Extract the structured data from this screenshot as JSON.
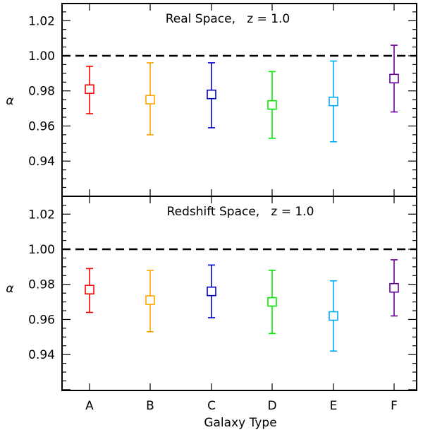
{
  "chart_data": [
    {
      "type": "scatter",
      "title": "Real Space,   z = 1.0",
      "ylabel": "α",
      "xlabel": "",
      "ylim": [
        0.92,
        1.03
      ],
      "yticks": [
        "0.94",
        "0.96",
        "0.98",
        "1.00",
        "1.02"
      ],
      "reference_line": {
        "y": 1.0,
        "style": "dashed"
      },
      "categories": [
        "A",
        "B",
        "C",
        "D",
        "E",
        "F"
      ],
      "points": [
        {
          "category": "A",
          "value": 0.981,
          "err_low": 0.967,
          "err_high": 0.994,
          "color": "#ff0000"
        },
        {
          "category": "B",
          "value": 0.975,
          "err_low": 0.955,
          "err_high": 0.996,
          "color": "#ffa500"
        },
        {
          "category": "C",
          "value": 0.978,
          "err_low": 0.959,
          "err_high": 0.996,
          "color": "#0000cc"
        },
        {
          "category": "D",
          "value": 0.972,
          "err_low": 0.953,
          "err_high": 0.991,
          "color": "#00ee00"
        },
        {
          "category": "E",
          "value": 0.974,
          "err_low": 0.951,
          "err_high": 0.997,
          "color": "#00aaee"
        },
        {
          "category": "F",
          "value": 0.987,
          "err_low": 0.968,
          "err_high": 1.006,
          "color": "#660099"
        }
      ]
    },
    {
      "type": "scatter",
      "title": "Redshift Space,   z = 1.0",
      "ylabel": "α",
      "xlabel": "Galaxy Type",
      "ylim": [
        0.92,
        1.03
      ],
      "yticks": [
        "0.94",
        "0.96",
        "0.98",
        "1.00",
        "1.02"
      ],
      "reference_line": {
        "y": 1.0,
        "style": "dashed"
      },
      "categories": [
        "A",
        "B",
        "C",
        "D",
        "E",
        "F"
      ],
      "points": [
        {
          "category": "A",
          "value": 0.977,
          "err_low": 0.964,
          "err_high": 0.989,
          "color": "#ff0000"
        },
        {
          "category": "B",
          "value": 0.971,
          "err_low": 0.953,
          "err_high": 0.988,
          "color": "#ffa500"
        },
        {
          "category": "C",
          "value": 0.976,
          "err_low": 0.961,
          "err_high": 0.991,
          "color": "#0000cc"
        },
        {
          "category": "D",
          "value": 0.97,
          "err_low": 0.952,
          "err_high": 0.988,
          "color": "#00ee00"
        },
        {
          "category": "E",
          "value": 0.962,
          "err_low": 0.942,
          "err_high": 0.982,
          "color": "#00aaee"
        },
        {
          "category": "F",
          "value": 0.978,
          "err_low": 0.962,
          "err_high": 0.994,
          "color": "#660099"
        }
      ]
    }
  ]
}
